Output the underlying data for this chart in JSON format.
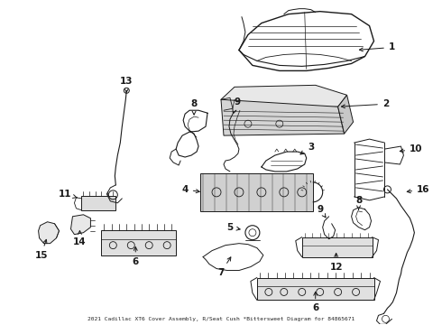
{
  "background_color": "#ffffff",
  "line_color": "#1a1a1a",
  "label_color": "#000000",
  "fig_width": 4.9,
  "fig_height": 3.6,
  "dpi": 100,
  "font_size": 7.5,
  "lw": 0.7
}
